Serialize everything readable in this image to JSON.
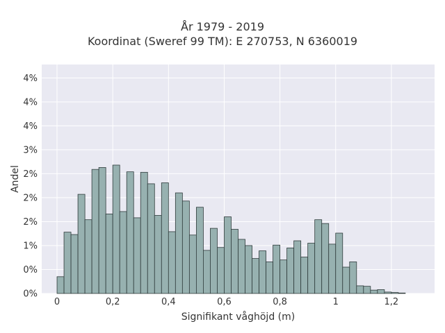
{
  "chart_data": {
    "type": "bar",
    "title": "År 1979 - 2019",
    "subtitle": "Koordinat (Sweref 99 TM): E 270753, N 6360019",
    "xlabel": "Signifikant våghöjd (m)",
    "ylabel": "Andel",
    "xlim": [
      -0.055,
      1.355
    ],
    "ylim": [
      0,
      0.0478
    ],
    "bin_width": 0.025,
    "bin_start": 0.0,
    "values": [
      0.0035,
      0.0128,
      0.0123,
      0.0207,
      0.0154,
      0.0259,
      0.0263,
      0.0166,
      0.0268,
      0.0171,
      0.0254,
      0.0158,
      0.0253,
      0.0229,
      0.0163,
      0.0231,
      0.0129,
      0.021,
      0.0193,
      0.0122,
      0.018,
      0.009,
      0.0136,
      0.0096,
      0.016,
      0.0134,
      0.0113,
      0.01,
      0.0073,
      0.0089,
      0.0066,
      0.0101,
      0.007,
      0.0095,
      0.011,
      0.0076,
      0.0105,
      0.0154,
      0.0146,
      0.0103,
      0.0126,
      0.0055,
      0.0066,
      0.0016,
      0.0015,
      0.0007,
      0.0008,
      0.0003,
      0.0002,
      0.0001
    ],
    "x_ticks": [
      {
        "value": 0,
        "label": "0"
      },
      {
        "value": 0.2,
        "label": "0,2"
      },
      {
        "value": 0.4,
        "label": "0,4"
      },
      {
        "value": 0.6,
        "label": "0,6"
      },
      {
        "value": 0.8,
        "label": "0,8"
      },
      {
        "value": 1.0,
        "label": "1"
      },
      {
        "value": 1.2,
        "label": "1,2"
      }
    ],
    "y_ticks": [
      {
        "value": 0,
        "label": "0%"
      },
      {
        "value": 0.005,
        "label": "0%"
      },
      {
        "value": 0.01,
        "label": "1%"
      },
      {
        "value": 0.015,
        "label": "2%"
      },
      {
        "value": 0.02,
        "label": "2%"
      },
      {
        "value": 0.025,
        "label": "2%"
      },
      {
        "value": 0.03,
        "label": "3%"
      },
      {
        "value": 0.035,
        "label": "4%"
      },
      {
        "value": 0.04,
        "label": "4%"
      },
      {
        "value": 0.045,
        "label": "4%"
      }
    ],
    "grid": true,
    "colors": {
      "bar_fill": "#97b1b0",
      "bar_edge": "#2f3b3b",
      "plot_bg": "#e9e9f2",
      "grid": "#ffffff"
    }
  }
}
